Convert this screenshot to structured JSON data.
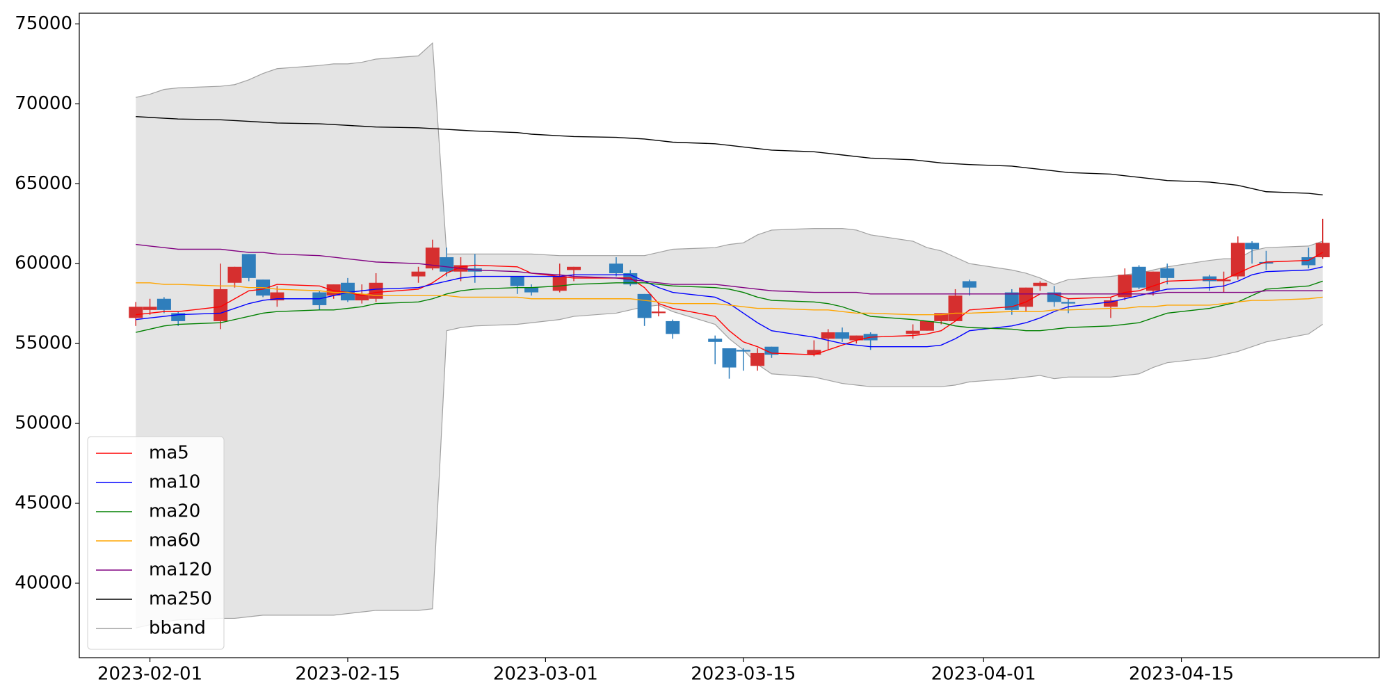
{
  "chart_data": {
    "type": "candlestick",
    "x": [
      "2023-01-31",
      "2023-02-01",
      "2023-02-02",
      "2023-02-03",
      "2023-02-06",
      "2023-02-07",
      "2023-02-08",
      "2023-02-09",
      "2023-02-10",
      "2023-02-13",
      "2023-02-14",
      "2023-02-15",
      "2023-02-16",
      "2023-02-17",
      "2023-02-20",
      "2023-02-21",
      "2023-02-22",
      "2023-02-23",
      "2023-02-24",
      "2023-02-27",
      "2023-02-28",
      "2023-03-02",
      "2023-03-03",
      "2023-03-06",
      "2023-03-07",
      "2023-03-08",
      "2023-03-09",
      "2023-03-10",
      "2023-03-13",
      "2023-03-14",
      "2023-03-15",
      "2023-03-16",
      "2023-03-17",
      "2023-03-20",
      "2023-03-21",
      "2023-03-22",
      "2023-03-23",
      "2023-03-24",
      "2023-03-27",
      "2023-03-28",
      "2023-03-29",
      "2023-03-30",
      "2023-03-31",
      "2023-04-03",
      "2023-04-04",
      "2023-04-05",
      "2023-04-06",
      "2023-04-07",
      "2023-04-10",
      "2023-04-11",
      "2023-04-12",
      "2023-04-13",
      "2023-04-14",
      "2023-04-17",
      "2023-04-18",
      "2023-04-19",
      "2023-04-20",
      "2023-04-21",
      "2023-04-24",
      "2023-04-25"
    ],
    "open": [
      56600,
      57100,
      57800,
      56900,
      56400,
      58800,
      60600,
      59000,
      57700,
      58200,
      58000,
      58800,
      57700,
      57800,
      59200,
      59700,
      60400,
      59500,
      59700,
      59200,
      58500,
      58300,
      59600,
      60000,
      59400,
      58100,
      56900,
      56400,
      55300,
      54700,
      54600,
      53600,
      54800,
      54300,
      55300,
      55700,
      55200,
      55600,
      55600,
      55800,
      56400,
      56400,
      58900,
      58200,
      57300,
      58600,
      58200,
      57600,
      57300,
      57900,
      59800,
      58300,
      59700,
      59200,
      58900,
      59200,
      61300,
      60100,
      60400,
      60400
    ],
    "high": [
      57600,
      57800,
      57900,
      57000,
      60000,
      59800,
      60600,
      59000,
      58600,
      58300,
      58700,
      59100,
      58700,
      59400,
      59800,
      61500,
      61000,
      60400,
      60600,
      59200,
      58700,
      60000,
      59800,
      60400,
      59600,
      58100,
      57500,
      56500,
      55500,
      54700,
      54700,
      54700,
      54800,
      55200,
      55900,
      56000,
      55500,
      55700,
      56200,
      56400,
      56900,
      58400,
      59000,
      58400,
      58500,
      58900,
      58600,
      57800,
      57900,
      59700,
      59900,
      59500,
      60000,
      59300,
      59500,
      61700,
      61400,
      60800,
      61000,
      62800
    ],
    "low": [
      56100,
      56800,
      56900,
      56100,
      55900,
      58500,
      58900,
      57900,
      57300,
      57100,
      57800,
      57600,
      57500,
      57600,
      58800,
      59600,
      59200,
      58900,
      58800,
      58100,
      58000,
      58200,
      58900,
      59200,
      58600,
      56100,
      56700,
      55300,
      53700,
      52800,
      53300,
      53300,
      54100,
      54200,
      54600,
      55100,
      55000,
      54600,
      55300,
      55800,
      56200,
      56400,
      58000,
      56800,
      57000,
      58300,
      57300,
      56900,
      56600,
      57700,
      58400,
      58000,
      58700,
      58300,
      58200,
      59000,
      60000,
      59600,
      59700,
      60300
    ],
    "close": [
      57300,
      57300,
      57100,
      56400,
      58400,
      59800,
      59100,
      58000,
      58200,
      57400,
      58700,
      57700,
      58100,
      58800,
      59500,
      61000,
      59500,
      59900,
      59500,
      58600,
      58200,
      59200,
      59800,
      59400,
      58700,
      56600,
      57000,
      55600,
      55100,
      53500,
      54500,
      54400,
      54300,
      54600,
      55700,
      55300,
      55500,
      55200,
      55800,
      56400,
      56900,
      58000,
      58500,
      57100,
      58500,
      58800,
      57600,
      57500,
      57700,
      59300,
      58500,
      59500,
      59100,
      58900,
      59000,
      61300,
      60900,
      60000,
      59900,
      61300
    ],
    "up_color": "#d62f2f",
    "down_color": "#2f7ebc",
    "series": [
      {
        "name": "ma5",
        "color": "#ff0000",
        "values": [
          56800,
          56900,
          57000,
          57000,
          57300,
          57800,
          58300,
          58400,
          58700,
          58600,
          58300,
          58200,
          58000,
          58200,
          58400,
          58800,
          59400,
          59800,
          59900,
          59800,
          59400,
          59200,
          59100,
          59100,
          59100,
          58500,
          57500,
          57200,
          56700,
          55800,
          55100,
          54800,
          54400,
          54300,
          54600,
          54900,
          55200,
          55400,
          55500,
          55600,
          55800,
          56400,
          57100,
          57300,
          57600,
          58100,
          58100,
          57800,
          57900,
          58200,
          58300,
          58600,
          58900,
          59000,
          59000,
          59400,
          59800,
          60100,
          60200,
          60700
        ]
      },
      {
        "name": "ma10",
        "color": "#0000ff",
        "values": [
          56500,
          56600,
          56700,
          56800,
          56900,
          57200,
          57500,
          57700,
          57800,
          57800,
          58000,
          58200,
          58300,
          58400,
          58500,
          58700,
          58900,
          59100,
          59200,
          59200,
          59200,
          59200,
          59300,
          59300,
          59300,
          58900,
          58500,
          58200,
          57900,
          57500,
          56900,
          56300,
          55800,
          55400,
          55200,
          55000,
          54900,
          54800,
          54800,
          54800,
          54900,
          55300,
          55800,
          56100,
          56300,
          56600,
          57000,
          57300,
          57600,
          57800,
          58000,
          58200,
          58400,
          58500,
          58600,
          58900,
          59300,
          59500,
          59600,
          59800
        ]
      },
      {
        "name": "ma20",
        "color": "#008000",
        "values": [
          55700,
          55900,
          56100,
          56200,
          56300,
          56500,
          56700,
          56900,
          57000,
          57100,
          57100,
          57200,
          57300,
          57500,
          57600,
          57800,
          58100,
          58300,
          58400,
          58500,
          58500,
          58600,
          58700,
          58800,
          58800,
          58800,
          58700,
          58600,
          58500,
          58400,
          58200,
          57900,
          57700,
          57600,
          57500,
          57300,
          57000,
          56700,
          56500,
          56400,
          56300,
          56100,
          56000,
          55900,
          55800,
          55800,
          55900,
          56000,
          56100,
          56200,
          56300,
          56600,
          56900,
          57200,
          57400,
          57600,
          58000,
          58400,
          58600,
          58900
        ]
      },
      {
        "name": "ma60",
        "color": "#ffa500",
        "values": [
          58800,
          58800,
          58700,
          58700,
          58600,
          58600,
          58500,
          58500,
          58400,
          58300,
          58200,
          58200,
          58100,
          58000,
          58000,
          58000,
          58000,
          57900,
          57900,
          57900,
          57800,
          57800,
          57800,
          57800,
          57800,
          57700,
          57600,
          57500,
          57500,
          57400,
          57300,
          57200,
          57200,
          57100,
          57100,
          57000,
          56900,
          56900,
          56800,
          56800,
          56800,
          56900,
          56900,
          57000,
          57000,
          57000,
          57100,
          57100,
          57200,
          57200,
          57300,
          57300,
          57400,
          57400,
          57500,
          57600,
          57700,
          57700,
          57800,
          57900
        ]
      },
      {
        "name": "ma120",
        "color": "#800080",
        "values": [
          61200,
          61100,
          61000,
          60900,
          60900,
          60800,
          60700,
          60700,
          60600,
          60500,
          60400,
          60300,
          60200,
          60100,
          60000,
          59900,
          59800,
          59700,
          59600,
          59500,
          59400,
          59300,
          59200,
          59100,
          59000,
          58900,
          58800,
          58700,
          58700,
          58600,
          58500,
          58400,
          58300,
          58200,
          58200,
          58200,
          58200,
          58100,
          58100,
          58100,
          58100,
          58100,
          58100,
          58100,
          58100,
          58100,
          58100,
          58100,
          58100,
          58100,
          58100,
          58100,
          58200,
          58200,
          58200,
          58200,
          58200,
          58300,
          58300,
          58300
        ]
      },
      {
        "name": "ma250",
        "color": "#000000",
        "values": [
          69200,
          69150,
          69100,
          69050,
          69000,
          68950,
          68900,
          68850,
          68800,
          68750,
          68700,
          68650,
          68600,
          68550,
          68500,
          68450,
          68400,
          68350,
          68300,
          68200,
          68100,
          68000,
          67950,
          67900,
          67850,
          67800,
          67700,
          67600,
          67500,
          67400,
          67300,
          67200,
          67100,
          67000,
          66900,
          66800,
          66700,
          66600,
          66500,
          66400,
          66300,
          66250,
          66200,
          66100,
          66000,
          65900,
          65800,
          65700,
          65600,
          65500,
          65400,
          65300,
          65200,
          65100,
          65000,
          64900,
          64700,
          64500,
          64400,
          64300
        ]
      }
    ],
    "bband": {
      "name": "bband",
      "color": "#a0a0a0",
      "fill": "#e4e4e4",
      "upper": [
        70400,
        70600,
        70900,
        71000,
        71100,
        71200,
        71500,
        71900,
        72200,
        72400,
        72500,
        72500,
        72600,
        72800,
        73000,
        73800,
        60600,
        60600,
        60600,
        60600,
        60600,
        60500,
        60500,
        60500,
        60500,
        60500,
        60700,
        60900,
        61000,
        61200,
        61300,
        61800,
        62100,
        62200,
        62200,
        62200,
        62100,
        61800,
        61400,
        61000,
        60800,
        60400,
        60000,
        59600,
        59400,
        59100,
        58700,
        59000,
        59200,
        59300,
        59400,
        59600,
        59800,
        60200,
        60300,
        60300,
        60800,
        61000,
        61100,
        61400
      ],
      "lower": [
        37200,
        37400,
        37600,
        37700,
        37800,
        37800,
        37900,
        38000,
        38000,
        38000,
        38000,
        38100,
        38200,
        38300,
        38300,
        38400,
        55800,
        56000,
        56100,
        56200,
        56300,
        56500,
        56700,
        56900,
        57100,
        57300,
        57400,
        57000,
        56200,
        55300,
        54600,
        53700,
        53100,
        52900,
        52700,
        52500,
        52400,
        52300,
        52300,
        52300,
        52300,
        52400,
        52600,
        52800,
        52900,
        53000,
        52800,
        52900,
        52900,
        53000,
        53100,
        53500,
        53800,
        54100,
        54300,
        54500,
        54800,
        55100,
        55600,
        56200
      ]
    },
    "xlim": [
      "2023-01-27",
      "2023-04-29"
    ],
    "xticks": [
      "2023-02-01",
      "2023-02-15",
      "2023-03-01",
      "2023-03-15",
      "2023-04-01",
      "2023-04-15"
    ],
    "ylim": [
      35340,
      75670
    ],
    "yticks": [
      40000,
      45000,
      50000,
      55000,
      60000,
      65000,
      70000,
      75000
    ],
    "legend": "lower left"
  }
}
